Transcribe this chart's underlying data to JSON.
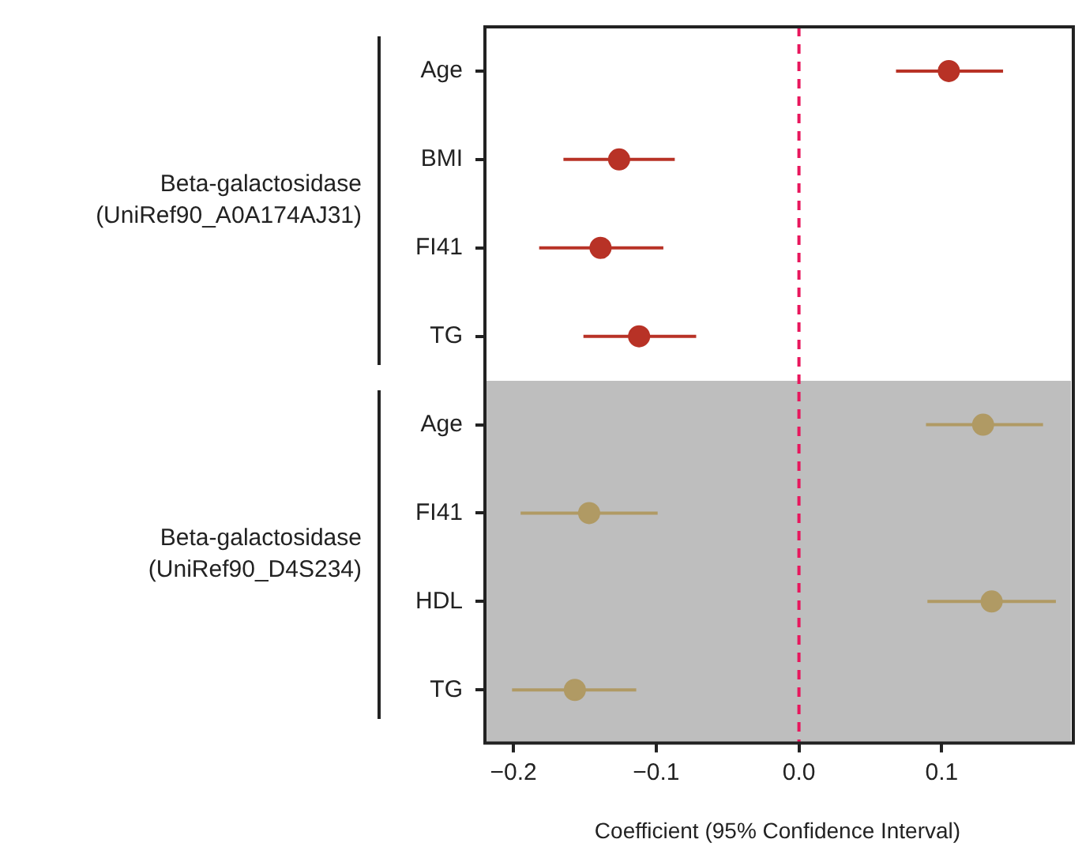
{
  "chart_data": {
    "type": "scatter",
    "orientation": "horizontal",
    "xlabel": "Coefficient (95% Confidence Interval)",
    "categories": [
      "Age",
      "BMI",
      "FI41",
      "TG",
      "Age",
      "FI41",
      "HDL",
      "TG"
    ],
    "series": [
      {
        "color": "#b83226",
        "values": [
          0.105,
          -0.126,
          -0.139,
          -0.112,
          null,
          null,
          null,
          null
        ],
        "errors": [
          [
            0.068,
            0.143
          ],
          [
            -0.165,
            -0.087
          ],
          [
            -0.182,
            -0.095
          ],
          [
            -0.151,
            -0.072
          ],
          null,
          null,
          null,
          null
        ]
      },
      {
        "color": "#b09a64",
        "values": [
          null,
          null,
          null,
          null,
          0.129,
          -0.147,
          0.135,
          -0.157
        ],
        "errors": [
          null,
          null,
          null,
          null,
          [
            0.089,
            0.171
          ],
          [
            -0.195,
            -0.099
          ],
          [
            0.09,
            0.18
          ],
          [
            -0.201,
            -0.114
          ]
        ]
      }
    ],
    "xlim": [
      -0.22,
      0.19
    ],
    "xticks": [
      {
        "value": -0.2,
        "label": "−0.2"
      },
      {
        "value": -0.1,
        "label": "−0.1"
      },
      {
        "value": 0,
        "label": "0.0"
      },
      {
        "value": 0.1,
        "label": "0.1"
      }
    ],
    "ref_lines": [
      {
        "axis": "x",
        "value": 0,
        "color": "#e8175d",
        "line_style": "dashed"
      }
    ],
    "annotations": [
      "Beta-galactosidase\n(UniRef90_A0A174AJ31)",
      "Beta-galactosidase\n(UniRef90_D4S234)"
    ],
    "marker": "circle",
    "grid": false,
    "legend": false
  }
}
